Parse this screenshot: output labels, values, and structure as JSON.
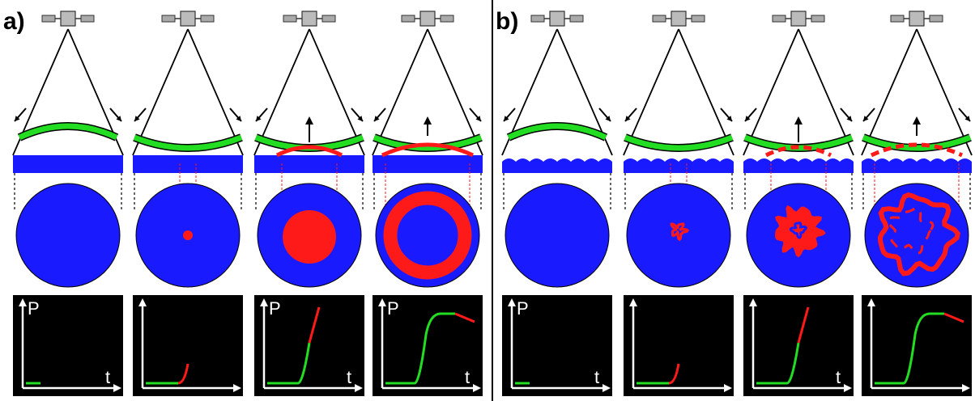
{
  "panels": [
    {
      "label": "a)",
      "surface": "flat",
      "steps": [
        {
          "spot": "none",
          "plot_label_y": "P",
          "plot_label_x": "t",
          "curve_progress": 0.0
        },
        {
          "spot": "dot",
          "plot_label_y": "",
          "plot_label_x": "",
          "curve_progress": 0.4
        },
        {
          "spot": "disk",
          "plot_label_y": "P",
          "plot_label_x": "t",
          "curve_progress": 0.7
        },
        {
          "spot": "ring",
          "plot_label_y": "P",
          "plot_label_x": "t",
          "curve_progress": 1.0
        }
      ]
    },
    {
      "label": "b)",
      "surface": "rough",
      "steps": [
        {
          "spot": "none",
          "plot_label_y": "P",
          "plot_label_x": "t",
          "curve_progress": 0.0
        },
        {
          "spot": "small-irregular",
          "plot_label_y": "",
          "plot_label_x": "",
          "curve_progress": 0.4
        },
        {
          "spot": "irregular-disk",
          "plot_label_y": "",
          "plot_label_x": "t",
          "curve_progress": 0.7
        },
        {
          "spot": "irregular-ring",
          "plot_label_y": "",
          "plot_label_x": "",
          "curve_progress": 1.0
        }
      ]
    }
  ],
  "colors": {
    "water": "#1a1aff",
    "wave": "#22dd22",
    "oil": "#ff1a1a",
    "plot_bg": "#000000",
    "axis": "#ffffff"
  },
  "icons": [
    "satellite-icon",
    "arrow-icon"
  ]
}
